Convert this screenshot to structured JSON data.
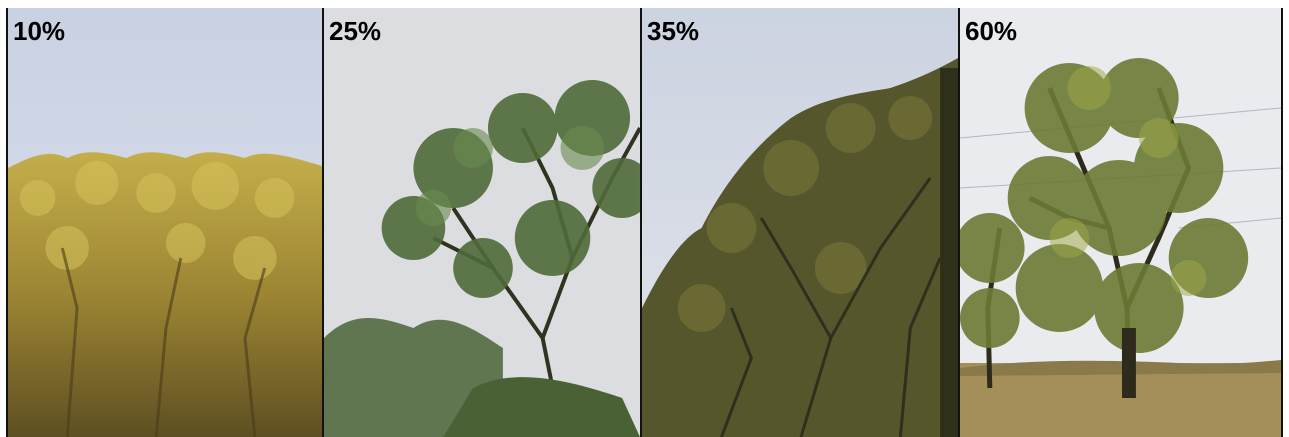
{
  "panels": [
    {
      "label": "10%",
      "sky": "#cfd6e4",
      "foliage": "#b09a3c",
      "shade": "#7a6a2a"
    },
    {
      "label": "25%",
      "sky": "#dcdde0",
      "foliage": "#4f6b3a",
      "shade": "#35492a"
    },
    {
      "label": "35%",
      "sky": "#d2d7e2",
      "foliage": "#5a5a2e",
      "shade": "#3c3d22"
    },
    {
      "label": "60%",
      "sky": "#e9ebef",
      "foliage": "#6b7a34",
      "shade": "#3f4a22",
      "ground": "#a48f5a"
    }
  ]
}
